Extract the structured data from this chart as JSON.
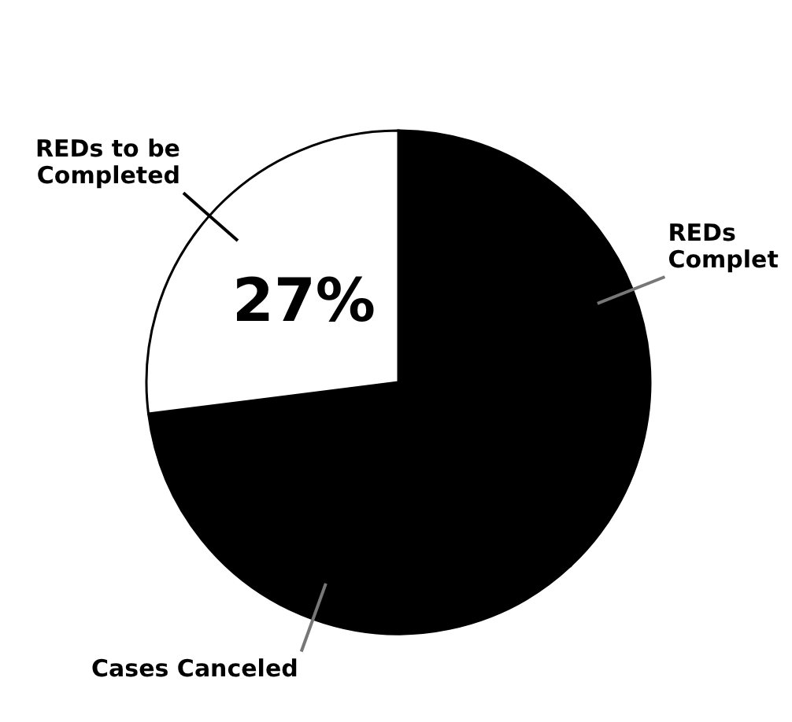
{
  "chart_data": {
    "type": "pie",
    "categories": [
      "REDs Complet",
      "Cases Canceled",
      "REDs to be Completed"
    ],
    "values": [
      38,
      35,
      27
    ],
    "colors": [
      "#000000",
      "#000000",
      "#ffffff"
    ],
    "value_labels": [
      null,
      null,
      "27%"
    ]
  }
}
